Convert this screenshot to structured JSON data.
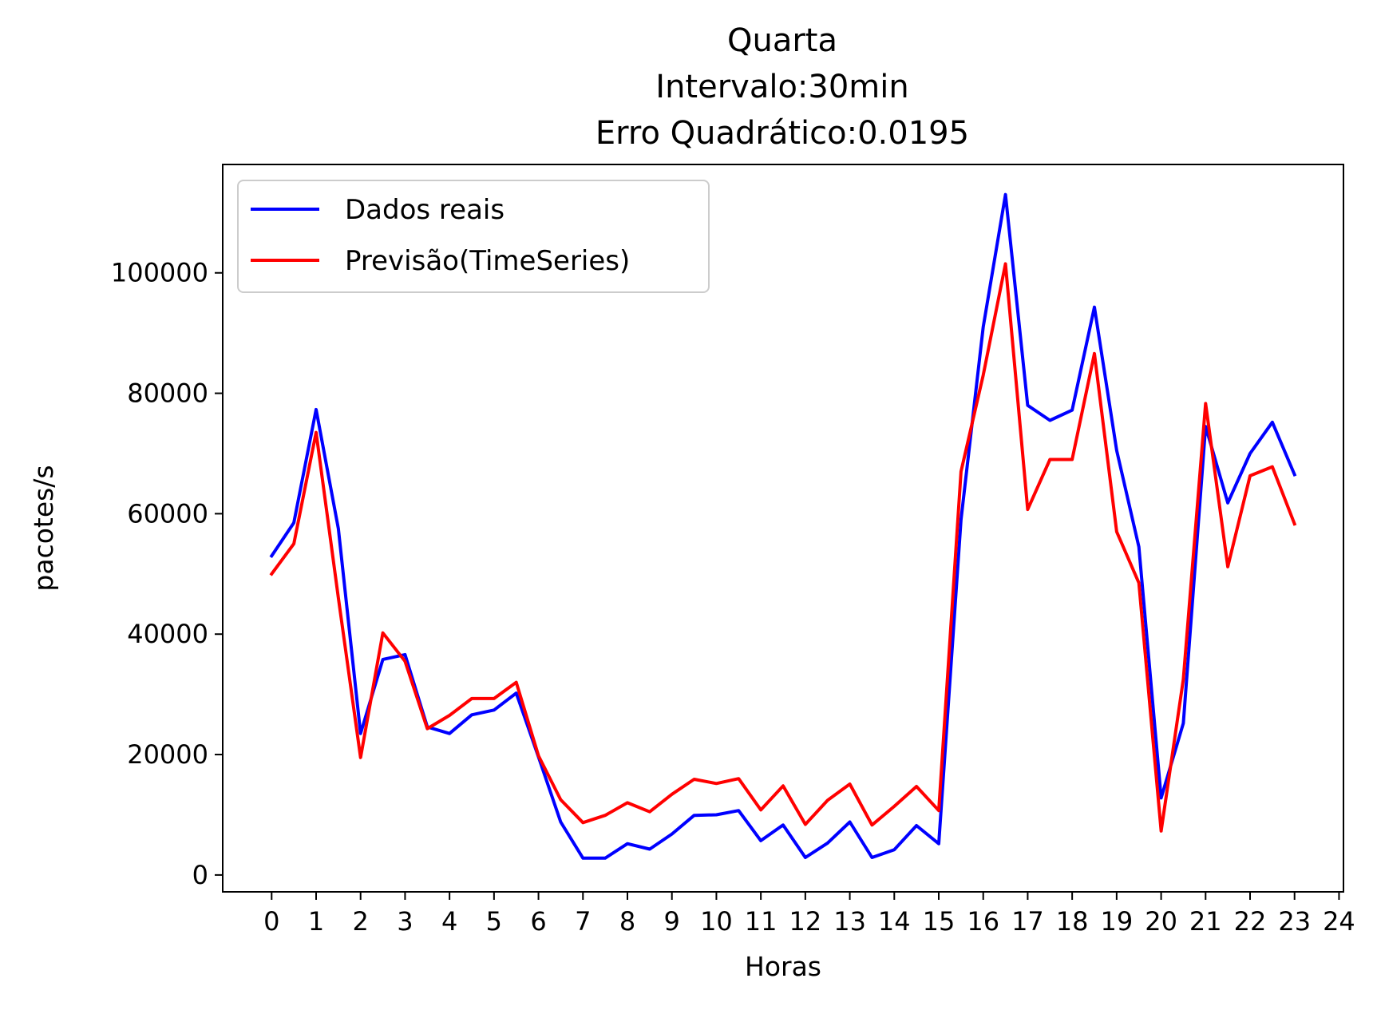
{
  "chart_data": {
    "type": "line",
    "title_lines": [
      "Quarta",
      "Intervalo:30min",
      "Erro Quadrático:0.0195"
    ],
    "xlabel": "Horas",
    "ylabel": "pacotes/s",
    "xlim": [
      -1.1,
      24.1
    ],
    "ylim": [
      -2800,
      118000
    ],
    "x_ticks": [
      0,
      1,
      2,
      3,
      4,
      5,
      6,
      7,
      8,
      9,
      10,
      11,
      12,
      13,
      14,
      15,
      16,
      17,
      18,
      19,
      20,
      21,
      22,
      23,
      24
    ],
    "y_ticks": [
      0,
      20000,
      40000,
      60000,
      80000,
      100000
    ],
    "grid": false,
    "legend_position": "top-left",
    "x": [
      0,
      0.5,
      1,
      1.5,
      2,
      2.5,
      3,
      3.5,
      4,
      4.5,
      5,
      5.5,
      6,
      6.5,
      7,
      7.5,
      8,
      8.5,
      9,
      9.5,
      10,
      10.5,
      11,
      11.5,
      12,
      12.5,
      13,
      13.5,
      14,
      14.5,
      15,
      15.5,
      16,
      16.5,
      17,
      17.5,
      18,
      18.5,
      19,
      19.5,
      20,
      20.5,
      21,
      21.5,
      22,
      22.5,
      23
    ],
    "series": [
      {
        "name": "Dados reais",
        "color": "#0000ff",
        "values": [
          53000,
          58500,
          77300,
          57500,
          23500,
          35800,
          36600,
          24600,
          23500,
          26600,
          27400,
          30200,
          19600,
          8800,
          2800,
          2800,
          5200,
          4300,
          6800,
          9900,
          10000,
          10700,
          5700,
          8300,
          2900,
          5300,
          8800,
          2900,
          4200,
          8200,
          5200,
          59000,
          91000,
          113000,
          78000,
          75500,
          77200,
          94300,
          70500,
          54500,
          12800,
          25200,
          74500,
          61800,
          70000,
          75200,
          66500
        ]
      },
      {
        "name": "Previsão(TimeSeries)",
        "color": "#ff0000",
        "values": [
          50000,
          55000,
          73500,
          46000,
          19500,
          40200,
          35500,
          24300,
          26500,
          29300,
          29300,
          32000,
          19800,
          12500,
          8700,
          9900,
          12000,
          10500,
          13400,
          15900,
          15200,
          16000,
          10800,
          14800,
          8400,
          12400,
          15100,
          8300,
          11400,
          14700,
          10700,
          67000,
          83000,
          101500,
          60700,
          69000,
          69000,
          86600,
          57000,
          48500,
          7300,
          32500,
          78300,
          51200,
          66300,
          67800,
          58300
        ]
      }
    ]
  }
}
